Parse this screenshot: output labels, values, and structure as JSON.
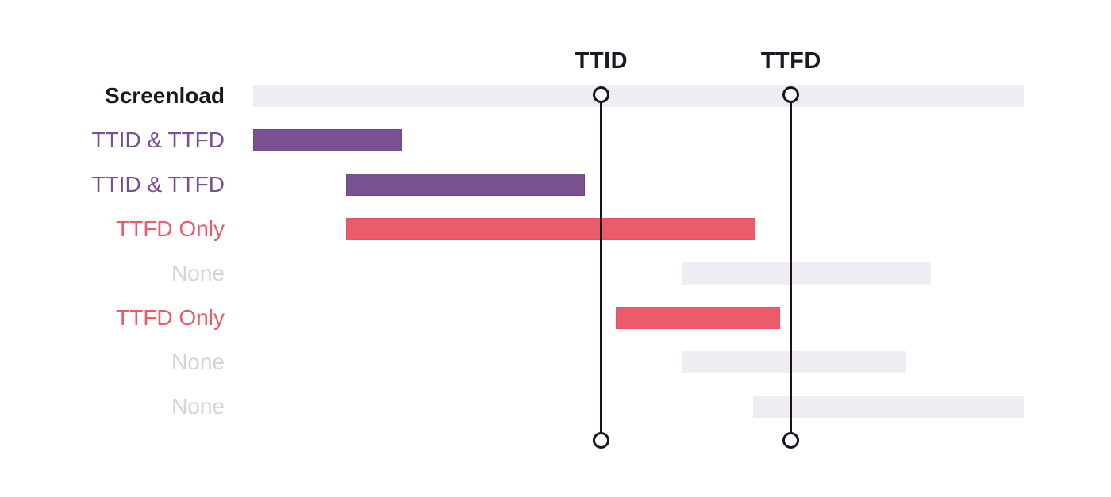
{
  "colors": {
    "background": "#ffffff",
    "bar_purple": "#7A5190",
    "bar_purple_border": "#6E4684",
    "bar_red": "#EC5B69",
    "bar_red_border": "#E65263",
    "bar_muted": "#EFECF3",
    "label_dark": "#1E1825",
    "label_purple": "#7B4F93",
    "label_red": "#EC5A68",
    "label_muted": "#D6D1DB",
    "marker_line": "#17121D"
  },
  "chart_data": {
    "type": "bar",
    "subtype": "horizontal-gantt-spans",
    "title": "",
    "xlabel": "",
    "ylabel": "",
    "axis_visible": false,
    "grid": false,
    "legend": "none",
    "x_range": [
      0,
      1000
    ],
    "rows": [
      {
        "label": "Screenload",
        "style": "screenload",
        "start": 0,
        "end": 1000
      },
      {
        "label": "TTID & TTFD",
        "style": "purple",
        "start": 0,
        "end": 193
      },
      {
        "label": "TTID & TTFD",
        "style": "purple",
        "start": 120,
        "end": 430
      },
      {
        "label": "TTFD Only",
        "style": "red",
        "start": 120,
        "end": 652
      },
      {
        "label": "None",
        "style": "none",
        "start": 556,
        "end": 879
      },
      {
        "label": "TTFD Only",
        "style": "red",
        "start": 471,
        "end": 684
      },
      {
        "label": "None",
        "style": "none",
        "start": 556,
        "end": 848
      },
      {
        "label": "None",
        "style": "none",
        "start": 649,
        "end": 1000
      }
    ],
    "markers": [
      {
        "label": "TTID",
        "t": 452
      },
      {
        "label": "TTFD",
        "t": 698
      }
    ]
  }
}
